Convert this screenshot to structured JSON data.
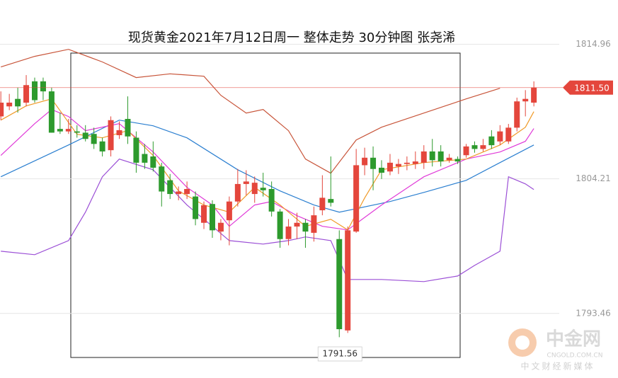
{
  "chart_data": {
    "type": "candlestick",
    "title": "现货黄金2021年7月12日周一 整体走势 30分钟图 张尧浠",
    "ylim": [
      1788.3,
      1818.5
    ],
    "xlim": [
      -0.1,
      66
    ],
    "yticks": [
      1814.96,
      1804.21,
      1793.46
    ],
    "grid": true,
    "up_color": "#e4463c",
    "down_color": "#2d9a2d",
    "open": [
      1809.2,
      1810.0,
      1810.6,
      1810.3,
      1812.0,
      1812.0,
      1811.2,
      1808.2,
      1808.0,
      1808.0,
      1807.9,
      1807.8,
      1807.2,
      1806.5,
      1807.7,
      1809.0,
      1807.5,
      1806.2,
      1806.0,
      1805.2,
      1804.1,
      1803.0,
      1803.0,
      1802.8,
      1800.7,
      1802.2,
      1800.0,
      1800.9,
      1802.4,
      1803.8,
      1803.0,
      1803.5,
      1803.4,
      1801.6,
      1799.4,
      1800.4,
      1800.7,
      1799.9,
      1801.7,
      1802.6,
      1799.4,
      1792.1,
      1800.0,
      1805.3,
      1805.9,
      1805.1,
      1804.8,
      1805.2,
      1805.4,
      1805.4,
      1805.5,
      1806.4,
      1806.4,
      1805.7,
      1805.8,
      1806.1,
      1806.9,
      1806.6,
      1807.6,
      1807.2,
      1807.2,
      1808.3,
      1810.4,
      1810.3
    ],
    "close": [
      1810.3,
      1810.3,
      1810.0,
      1811.7,
      1810.5,
      1811.2,
      1807.9,
      1808.0,
      1808.2,
      1807.9,
      1807.4,
      1807.0,
      1806.4,
      1808.9,
      1808.1,
      1807.6,
      1805.5,
      1805.5,
      1805.1,
      1803.2,
      1803.0,
      1803.2,
      1803.4,
      1801.0,
      1802.1,
      1800.1,
      1800.7,
      1802.4,
      1803.8,
      1804.0,
      1803.9,
      1803.3,
      1801.6,
      1799.4,
      1800.4,
      1800.7,
      1800.0,
      1801.3,
      1802.7,
      1802.3,
      1792.2,
      1800.1,
      1805.3,
      1805.9,
      1805.0,
      1804.7,
      1805.5,
      1805.4,
      1805.5,
      1805.6,
      1806.4,
      1805.7,
      1805.6,
      1805.9,
      1805.6,
      1806.8,
      1806.6,
      1806.9,
      1806.9,
      1808.0,
      1808.3,
      1810.4,
      1810.6,
      1811.5
    ],
    "high": [
      1811.2,
      1811.0,
      1811.5,
      1812.5,
      1812.3,
      1812.3,
      1811.5,
      1809.5,
      1809.0,
      1808.5,
      1808.5,
      1808.3,
      1807.5,
      1809.2,
      1808.8,
      1810.8,
      1808.0,
      1807.0,
      1807.2,
      1805.5,
      1804.6,
      1803.6,
      1804.0,
      1803.2,
      1802.4,
      1802.5,
      1801.0,
      1802.8,
      1805.0,
      1804.9,
      1804.4,
      1804.7,
      1804.0,
      1801.8,
      1801.0,
      1801.5,
      1801.0,
      1802.0,
      1804.5,
      1806.0,
      1800.1,
      1800.4,
      1806.6,
      1806.7,
      1806.8,
      1805.7,
      1806.2,
      1805.8,
      1806.0,
      1806.4,
      1806.9,
      1807.4,
      1806.9,
      1806.2,
      1806.0,
      1807.0,
      1807.2,
      1807.4,
      1808.1,
      1808.5,
      1808.6,
      1810.7,
      1811.3,
      1812.0
    ],
    "low": [
      1808.9,
      1809.7,
      1809.5,
      1810.0,
      1810.3,
      1810.5,
      1807.9,
      1807.8,
      1807.8,
      1807.5,
      1807.2,
      1806.6,
      1806.0,
      1806.0,
      1807.4,
      1807.0,
      1804.7,
      1805.0,
      1804.8,
      1802.0,
      1802.6,
      1802.5,
      1802.6,
      1800.5,
      1800.2,
      1799.5,
      1799.3,
      1798.9,
      1802.0,
      1802.9,
      1802.3,
      1802.8,
      1801.2,
      1798.7,
      1798.9,
      1799.4,
      1798.7,
      1799.2,
      1801.3,
      1802.0,
      1791.56,
      1791.9,
      1799.9,
      1804.5,
      1803.3,
      1804.2,
      1804.5,
      1804.6,
      1804.9,
      1805.0,
      1805.0,
      1805.2,
      1805.2,
      1805.5,
      1805.4,
      1805.9,
      1806.3,
      1806.4,
      1806.6,
      1806.9,
      1807.0,
      1808.0,
      1809.2,
      1810.0
    ],
    "lines": [
      {
        "color": "#c8553a",
        "x": [
          0,
          4,
          8,
          12,
          16,
          20,
          24,
          26,
          29,
          31,
          34,
          36,
          39,
          42,
          45,
          50,
          55,
          59
        ],
        "values": [
          1813.15,
          1814.0,
          1814.56,
          1813.55,
          1812.3,
          1812.6,
          1812.41,
          1810.89,
          1809.47,
          1809.75,
          1808.06,
          1805.79,
          1804.66,
          1807.32,
          1808.34,
          1809.47,
          1810.6,
          1811.45
        ]
      },
      {
        "color": "#2b7fd0",
        "x": [
          0,
          8,
          14,
          18,
          22,
          28,
          33,
          37,
          40,
          42,
          46,
          50,
          55,
          59,
          63
        ],
        "values": [
          1804.38,
          1806.92,
          1808.9,
          1808.45,
          1807.49,
          1804.94,
          1803.25,
          1802.12,
          1801.55,
          1801.83,
          1802.4,
          1803.13,
          1804.09,
          1805.51,
          1806.92
        ]
      },
      {
        "color": "#9b4fd6",
        "x": [
          0,
          4,
          8,
          10,
          12,
          14,
          18,
          22,
          25,
          27,
          31,
          34,
          36,
          39,
          41,
          45,
          50,
          54,
          56,
          59,
          60,
          62,
          63
        ],
        "values": [
          1798.43,
          1798.15,
          1799.28,
          1801.55,
          1804.38,
          1805.79,
          1804.94,
          1802.12,
          1800.42,
          1799.28,
          1799.0,
          1799.28,
          1799.57,
          1799.28,
          1796.17,
          1796.17,
          1796.0,
          1796.45,
          1797.3,
          1798.43,
          1804.38,
          1803.81,
          1803.36
        ]
      },
      {
        "color": "#e03ad8",
        "x": [
          0,
          4,
          6,
          8,
          10,
          14,
          18,
          22,
          25,
          27,
          30,
          32,
          35,
          38,
          41,
          45,
          50,
          55,
          59,
          62,
          63
        ],
        "values": [
          1806.08,
          1808.62,
          1809.75,
          1809.19,
          1808.06,
          1808.62,
          1806.36,
          1803.53,
          1802.12,
          1800.42,
          1802.12,
          1802.4,
          1801.27,
          1800.42,
          1800.13,
          1802.12,
          1804.38,
          1805.79,
          1806.36,
          1807.21,
          1808.23
        ]
      },
      {
        "color": "#f09a28",
        "x": [
          0,
          3,
          6,
          9,
          12,
          15,
          18,
          21,
          24,
          27,
          30,
          33,
          36,
          39,
          41,
          43,
          45,
          50,
          55,
          59,
          62,
          63
        ],
        "values": [
          1808.9,
          1810.04,
          1810.6,
          1807.77,
          1807.49,
          1808.06,
          1806.08,
          1803.25,
          1802.12,
          1801.55,
          1803.53,
          1802.12,
          1800.42,
          1800.98,
          1800.13,
          1802.68,
          1804.94,
          1805.51,
          1805.79,
          1806.92,
          1808.34,
          1809.58
        ]
      }
    ],
    "price_line": {
      "value": 1811.5,
      "label": "1811.50",
      "color": "#e4463c"
    },
    "low_annotation": 1791.56
  },
  "watermark": {
    "name": "中金网",
    "domain": "CNGOLD.COM.CN",
    "slogan": "中文财经新媒体"
  }
}
